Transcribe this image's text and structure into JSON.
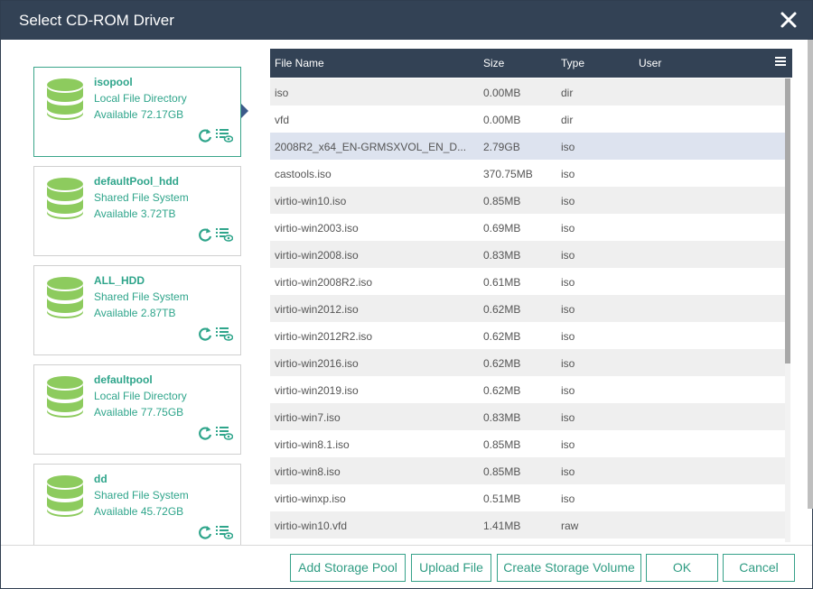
{
  "dialog": {
    "title": "Select CD-ROM Driver",
    "close_icon": "close-icon"
  },
  "pools": [
    {
      "name": "isopool",
      "type": "Local File Directory",
      "available": "Available 72.17GB",
      "selected": true
    },
    {
      "name": "defaultPool_hdd",
      "type": "Shared File System",
      "available": "Available 3.72TB",
      "selected": false
    },
    {
      "name": "ALL_HDD",
      "type": "Shared File System",
      "available": "Available 2.87TB",
      "selected": false
    },
    {
      "name": "defaultpool",
      "type": "Local File Directory",
      "available": "Available 77.75GB",
      "selected": false
    },
    {
      "name": "dd",
      "type": "Shared File System",
      "available": "Available 45.72GB",
      "selected": false
    }
  ],
  "table": {
    "columns": [
      "File Name",
      "Size",
      "Type",
      "User"
    ],
    "menu_icon": "hamburger-menu-icon",
    "rows": [
      {
        "name": "iso",
        "size": "0.00MB",
        "type": "dir",
        "user": ""
      },
      {
        "name": "vfd",
        "size": "0.00MB",
        "type": "dir",
        "user": ""
      },
      {
        "name": "2008R2_x64_EN-GRMSXVOL_EN_D...",
        "size": "2.79GB",
        "type": "iso",
        "user": "",
        "selected": true
      },
      {
        "name": "castools.iso",
        "size": "370.75MB",
        "type": "iso",
        "user": ""
      },
      {
        "name": "virtio-win10.iso",
        "size": "0.85MB",
        "type": "iso",
        "user": ""
      },
      {
        "name": "virtio-win2003.iso",
        "size": "0.69MB",
        "type": "iso",
        "user": ""
      },
      {
        "name": "virtio-win2008.iso",
        "size": "0.83MB",
        "type": "iso",
        "user": ""
      },
      {
        "name": "virtio-win2008R2.iso",
        "size": "0.61MB",
        "type": "iso",
        "user": ""
      },
      {
        "name": "virtio-win2012.iso",
        "size": "0.62MB",
        "type": "iso",
        "user": ""
      },
      {
        "name": "virtio-win2012R2.iso",
        "size": "0.62MB",
        "type": "iso",
        "user": ""
      },
      {
        "name": "virtio-win2016.iso",
        "size": "0.62MB",
        "type": "iso",
        "user": ""
      },
      {
        "name": "virtio-win2019.iso",
        "size": "0.62MB",
        "type": "iso",
        "user": ""
      },
      {
        "name": "virtio-win7.iso",
        "size": "0.83MB",
        "type": "iso",
        "user": ""
      },
      {
        "name": "virtio-win8.1.iso",
        "size": "0.85MB",
        "type": "iso",
        "user": ""
      },
      {
        "name": "virtio-win8.iso",
        "size": "0.85MB",
        "type": "iso",
        "user": ""
      },
      {
        "name": "virtio-winxp.iso",
        "size": "0.51MB",
        "type": "iso",
        "user": ""
      },
      {
        "name": "virtio-win10.vfd",
        "size": "1.41MB",
        "type": "raw",
        "user": ""
      }
    ]
  },
  "buttons": {
    "add_pool": "Add Storage Pool",
    "upload": "Upload File",
    "create_volume": "Create Storage Volume",
    "ok": "OK",
    "cancel": "Cancel"
  },
  "colors": {
    "header": "#334255",
    "accent": "#2fa58b",
    "db_icon": "#8dcb5e",
    "selected_row": "#dde3ef"
  }
}
